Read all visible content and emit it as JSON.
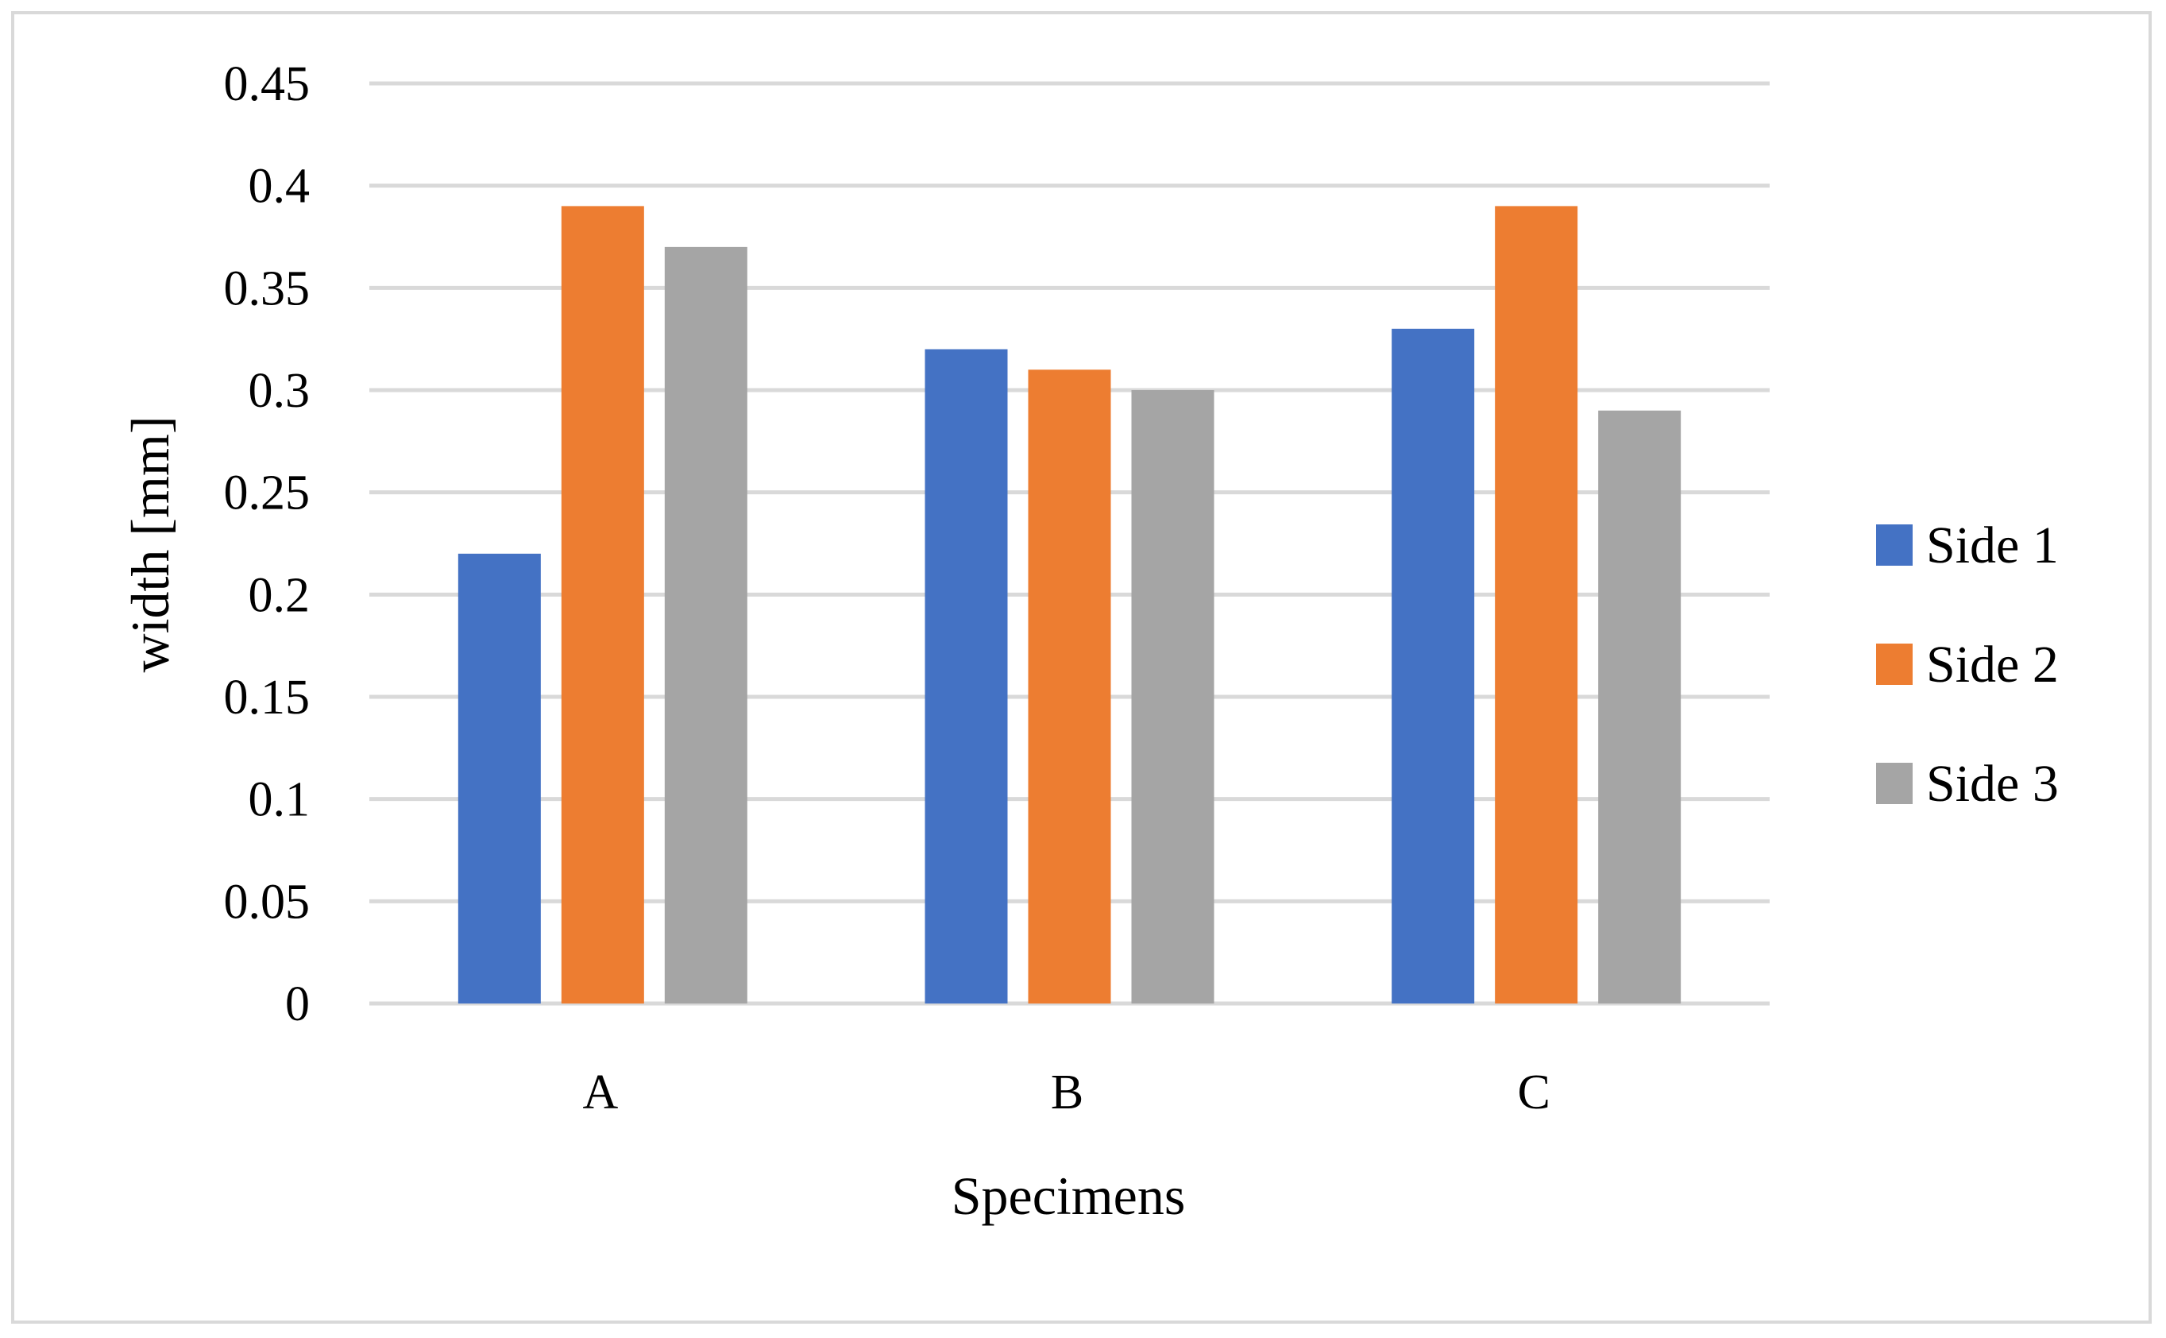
{
  "chart_data": {
    "type": "bar",
    "title": "",
    "xlabel": "Specimens",
    "ylabel": "width [mm]",
    "categories": [
      "A",
      "B",
      "C"
    ],
    "ylim": [
      0,
      0.45
    ],
    "yticks": [
      0,
      0.05,
      0.1,
      0.15,
      0.2,
      0.25,
      0.3,
      0.35,
      0.4,
      0.45
    ],
    "ytick_labels": [
      "0",
      "0.05",
      "0.1",
      "0.15",
      "0.2",
      "0.25",
      "0.3",
      "0.35",
      "0.4",
      "0.45"
    ],
    "grid": true,
    "legend_position": "right",
    "series": [
      {
        "name": "Side 1",
        "color": "#4472c4",
        "values": [
          0.22,
          0.32,
          0.33
        ]
      },
      {
        "name": "Side 2",
        "color": "#ed7d31",
        "values": [
          0.39,
          0.31,
          0.39
        ]
      },
      {
        "name": "Side 3",
        "color": "#a5a5a5",
        "values": [
          0.37,
          0.3,
          0.29
        ]
      }
    ]
  }
}
